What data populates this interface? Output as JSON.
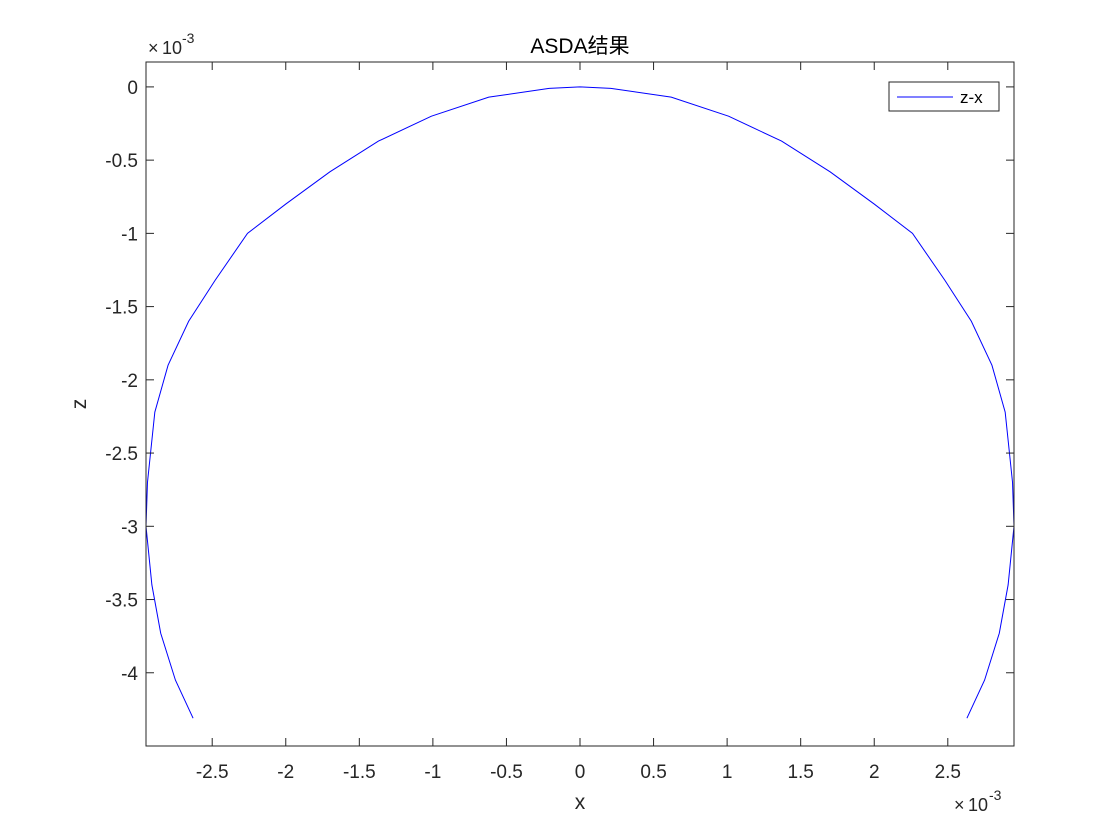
{
  "chart_data": {
    "type": "line",
    "title": "ASDA结果",
    "xlabel": "x",
    "ylabel": "z",
    "xlim": [
      -0.00295,
      0.00295
    ],
    "ylim": [
      -0.0045,
      0.00017
    ],
    "x_multiplier": {
      "times": "×",
      "base": "10",
      "exponent": "-3"
    },
    "y_multiplier": {
      "times": "×",
      "base": "10",
      "exponent": "-3"
    },
    "x_ticks": [
      {
        "value": -0.0025,
        "label": "-2.5"
      },
      {
        "value": -0.002,
        "label": "-2"
      },
      {
        "value": -0.0015,
        "label": "-1.5"
      },
      {
        "value": -0.001,
        "label": "-1"
      },
      {
        "value": -0.0005,
        "label": "-0.5"
      },
      {
        "value": 0,
        "label": "0"
      },
      {
        "value": 0.0005,
        "label": "0.5"
      },
      {
        "value": 0.001,
        "label": "1"
      },
      {
        "value": 0.0015,
        "label": "1.5"
      },
      {
        "value": 0.002,
        "label": "2"
      },
      {
        "value": 0.0025,
        "label": "2.5"
      }
    ],
    "y_ticks": [
      {
        "value": 0,
        "label": "0"
      },
      {
        "value": -0.0005,
        "label": "-0.5"
      },
      {
        "value": -0.001,
        "label": "-1"
      },
      {
        "value": -0.0015,
        "label": "-1.5"
      },
      {
        "value": -0.002,
        "label": "-2"
      },
      {
        "value": -0.0025,
        "label": "-2.5"
      },
      {
        "value": -0.003,
        "label": "-3"
      },
      {
        "value": -0.0035,
        "label": "-3.5"
      },
      {
        "value": -0.004,
        "label": "-4"
      }
    ],
    "grid": false,
    "legend": {
      "placement": "top-right"
    },
    "series": [
      {
        "name": "z-x",
        "color": "#0000ff",
        "x": [
          -0.00263,
          -0.00275,
          -0.00285,
          -0.00291,
          -0.00295,
          -0.00294,
          -0.00289,
          -0.0028,
          -0.00266,
          -0.00248,
          -0.00226,
          -0.002,
          -0.0017,
          -0.00137,
          -0.00101,
          -0.00062,
          -0.00021,
          0.0,
          0.00021,
          0.00062,
          0.00101,
          0.00137,
          0.0017,
          0.002,
          0.00226,
          0.00248,
          0.00266,
          0.0028,
          0.00289,
          0.00294,
          0.00295,
          0.00291,
          0.00285,
          0.00275,
          0.00263
        ],
        "y": [
          -0.00431,
          -0.00405,
          -0.00373,
          -0.0034,
          -0.003,
          -0.0027,
          -0.00222,
          -0.0019,
          -0.0016,
          -0.00132,
          -0.001,
          -0.0008,
          -0.00058,
          -0.00037,
          -0.0002,
          -7e-05,
          -1e-05,
          0.0,
          -1e-05,
          -7e-05,
          -0.0002,
          -0.00037,
          -0.00058,
          -0.0008,
          -0.001,
          -0.00132,
          -0.0016,
          -0.0019,
          -0.00222,
          -0.0027,
          -0.003,
          -0.0034,
          -0.00373,
          -0.00405,
          -0.00431
        ]
      }
    ]
  }
}
